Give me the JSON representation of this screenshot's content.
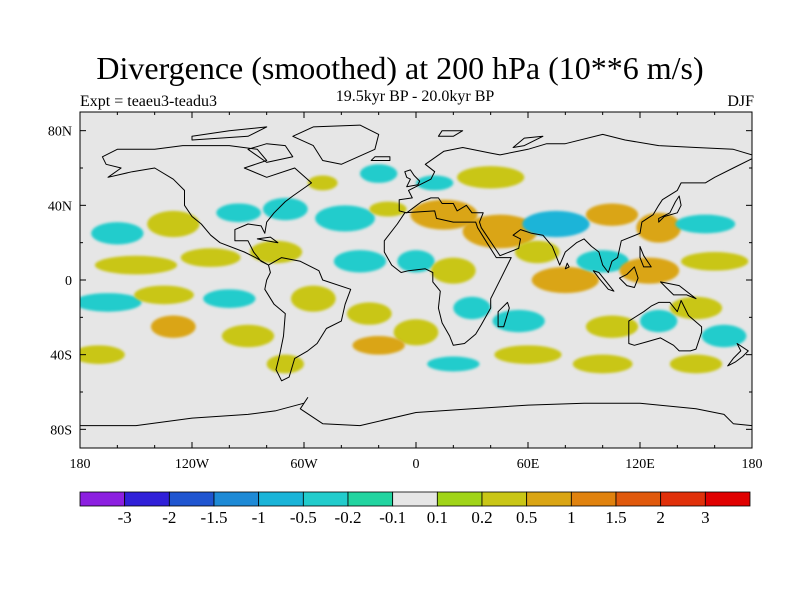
{
  "chart_data": {
    "type": "heatmap",
    "title": "Divergence (smoothed) at 200 hPa (10**6 m/s)",
    "subtitle": "19.5kyr BP - 20.0kyr BP",
    "expt_label": "Expt = teaeu3-teadu3",
    "season": "DJF",
    "xlim": [
      -180,
      180
    ],
    "ylim": [
      -90,
      90
    ],
    "x_ticks": [
      {
        "value": -180,
        "label": "180"
      },
      {
        "value": -120,
        "label": "120W"
      },
      {
        "value": -60,
        "label": "60W"
      },
      {
        "value": 0,
        "label": "0"
      },
      {
        "value": 60,
        "label": "60E"
      },
      {
        "value": 120,
        "label": "120E"
      },
      {
        "value": 180,
        "label": "180"
      }
    ],
    "y_ticks": [
      {
        "value": 80,
        "label": "80N"
      },
      {
        "value": 40,
        "label": "40N"
      },
      {
        "value": 0,
        "label": "0"
      },
      {
        "value": -40,
        "label": "40S"
      },
      {
        "value": -80,
        "label": "80S"
      }
    ],
    "colorbar": {
      "levels": [
        "-3",
        "-2",
        "-1.5",
        "-1",
        "-0.5",
        "-0.2",
        "-0.1",
        "0.1",
        "0.2",
        "0.5",
        "1",
        "1.5",
        "2",
        "3"
      ],
      "colors": [
        "#8c1fe0",
        "#3020d8",
        "#1f55d0",
        "#1e8ad6",
        "#1ab4d8",
        "#22cccc",
        "#22d4a0",
        "#e6e6e6",
        "#a0d418",
        "#c9c616",
        "#daa514",
        "#e0820e",
        "#e0590c",
        "#e0300a",
        "#e00000"
      ]
    },
    "field_blobs": [
      {
        "lon": -160,
        "lat": 25,
        "rx": 14,
        "ry": 6,
        "value": -0.3
      },
      {
        "lon": -130,
        "lat": 30,
        "rx": 14,
        "ry": 7,
        "value": 0.3
      },
      {
        "lon": -95,
        "lat": 36,
        "rx": 12,
        "ry": 5,
        "value": -0.3
      },
      {
        "lon": -70,
        "lat": 38,
        "rx": 12,
        "ry": 6,
        "value": -0.3
      },
      {
        "lon": -38,
        "lat": 33,
        "rx": 16,
        "ry": 7,
        "value": -0.3
      },
      {
        "lon": -15,
        "lat": 38,
        "rx": 10,
        "ry": 4,
        "value": 0.3
      },
      {
        "lon": -50,
        "lat": 52,
        "rx": 8,
        "ry": 4,
        "value": 0.3
      },
      {
        "lon": -20,
        "lat": 57,
        "rx": 10,
        "ry": 5,
        "value": -0.3
      },
      {
        "lon": 15,
        "lat": 35,
        "rx": 18,
        "ry": 8,
        "value": 0.6
      },
      {
        "lon": 45,
        "lat": 26,
        "rx": 20,
        "ry": 9,
        "value": 0.8
      },
      {
        "lon": 75,
        "lat": 30,
        "rx": 18,
        "ry": 7,
        "value": -0.6
      },
      {
        "lon": 65,
        "lat": 15,
        "rx": 12,
        "ry": 6,
        "value": 0.4
      },
      {
        "lon": 105,
        "lat": 35,
        "rx": 14,
        "ry": 6,
        "value": 0.5
      },
      {
        "lon": 130,
        "lat": 28,
        "rx": 12,
        "ry": 8,
        "value": 0.6
      },
      {
        "lon": 155,
        "lat": 30,
        "rx": 16,
        "ry": 5,
        "value": -0.3
      },
      {
        "lon": 40,
        "lat": 55,
        "rx": 18,
        "ry": 6,
        "value": 0.3
      },
      {
        "lon": 10,
        "lat": 52,
        "rx": 10,
        "ry": 4,
        "value": -0.3
      },
      {
        "lon": -150,
        "lat": 8,
        "rx": 22,
        "ry": 5,
        "value": 0.4
      },
      {
        "lon": -110,
        "lat": 12,
        "rx": 16,
        "ry": 5,
        "value": 0.3
      },
      {
        "lon": -75,
        "lat": 15,
        "rx": 14,
        "ry": 6,
        "value": 0.2
      },
      {
        "lon": -30,
        "lat": 10,
        "rx": 14,
        "ry": 6,
        "value": -0.3
      },
      {
        "lon": 0,
        "lat": 10,
        "rx": 10,
        "ry": 6,
        "value": -0.3
      },
      {
        "lon": 20,
        "lat": 5,
        "rx": 12,
        "ry": 7,
        "value": 0.4
      },
      {
        "lon": 80,
        "lat": 0,
        "rx": 18,
        "ry": 7,
        "value": 0.8
      },
      {
        "lon": 100,
        "lat": 10,
        "rx": 14,
        "ry": 6,
        "value": -0.5
      },
      {
        "lon": 125,
        "lat": 5,
        "rx": 16,
        "ry": 7,
        "value": 0.6
      },
      {
        "lon": 160,
        "lat": 10,
        "rx": 18,
        "ry": 5,
        "value": 0.3
      },
      {
        "lon": -165,
        "lat": -12,
        "rx": 18,
        "ry": 5,
        "value": -0.3
      },
      {
        "lon": -135,
        "lat": -8,
        "rx": 16,
        "ry": 5,
        "value": 0.4
      },
      {
        "lon": -100,
        "lat": -10,
        "rx": 14,
        "ry": 5,
        "value": -0.3
      },
      {
        "lon": -130,
        "lat": -25,
        "rx": 12,
        "ry": 6,
        "value": 0.8
      },
      {
        "lon": -90,
        "lat": -30,
        "rx": 14,
        "ry": 6,
        "value": 0.3
      },
      {
        "lon": -55,
        "lat": -10,
        "rx": 12,
        "ry": 7,
        "value": 0.4
      },
      {
        "lon": -25,
        "lat": -18,
        "rx": 12,
        "ry": 6,
        "value": 0.3
      },
      {
        "lon": 0,
        "lat": -28,
        "rx": 12,
        "ry": 7,
        "value": 0.4
      },
      {
        "lon": -20,
        "lat": -35,
        "rx": 14,
        "ry": 5,
        "value": 0.6
      },
      {
        "lon": 30,
        "lat": -15,
        "rx": 10,
        "ry": 6,
        "value": -0.3
      },
      {
        "lon": 55,
        "lat": -22,
        "rx": 14,
        "ry": 6,
        "value": -0.3
      },
      {
        "lon": 60,
        "lat": -40,
        "rx": 18,
        "ry": 5,
        "value": 0.3
      },
      {
        "lon": 105,
        "lat": -25,
        "rx": 14,
        "ry": 6,
        "value": 0.3
      },
      {
        "lon": 130,
        "lat": -22,
        "rx": 10,
        "ry": 6,
        "value": -0.5
      },
      {
        "lon": 150,
        "lat": -15,
        "rx": 14,
        "ry": 6,
        "value": 0.4
      },
      {
        "lon": 165,
        "lat": -30,
        "rx": 12,
        "ry": 6,
        "value": -0.3
      },
      {
        "lon": -170,
        "lat": -40,
        "rx": 14,
        "ry": 5,
        "value": 0.3
      },
      {
        "lon": -70,
        "lat": -45,
        "rx": 10,
        "ry": 5,
        "value": 0.3
      },
      {
        "lon": 20,
        "lat": -45,
        "rx": 14,
        "ry": 4,
        "value": -0.3
      },
      {
        "lon": 100,
        "lat": -45,
        "rx": 16,
        "ry": 5,
        "value": 0.3
      },
      {
        "lon": 150,
        "lat": -45,
        "rx": 14,
        "ry": 5,
        "value": 0.3
      }
    ]
  }
}
